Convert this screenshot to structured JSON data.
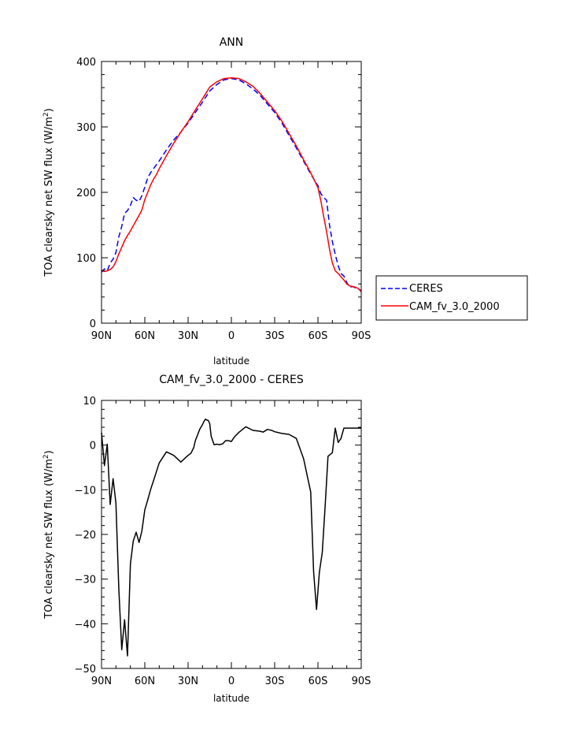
{
  "chart_data": [
    {
      "type": "line",
      "title": "ANN",
      "xlabel": "latitude",
      "ylabel": "TOA clearsky net SW flux (W/m2)",
      "xlim": [
        90,
        -90
      ],
      "ylim": [
        0,
        400
      ],
      "xticks": [
        90,
        60,
        30,
        0,
        -30,
        -60,
        -90
      ],
      "xtick_labels": [
        "90N",
        "60N",
        "30N",
        "0",
        "30S",
        "60S",
        "90S"
      ],
      "yticks": [
        0,
        100,
        200,
        300,
        400
      ],
      "ytick_labels": [
        "0",
        "100",
        "200",
        "300",
        "400"
      ],
      "grid": false,
      "legend_position": "right",
      "series": [
        {
          "name": "CERES",
          "color": "#0000ff",
          "dash": "dashed",
          "x": [
            90,
            88,
            86,
            84,
            82,
            80,
            78,
            76,
            74,
            72,
            70,
            68,
            66,
            64,
            62,
            60,
            58,
            56,
            54,
            52,
            50,
            45,
            40,
            35,
            30,
            25,
            20,
            15,
            10,
            5,
            0,
            -5,
            -10,
            -15,
            -20,
            -25,
            -30,
            -35,
            -40,
            -45,
            -50,
            -55,
            -60,
            -62,
            -64,
            -66,
            -68,
            -70,
            -72,
            -74,
            -76,
            -78,
            -80,
            -82,
            -84,
            -86,
            -88,
            -90
          ],
          "y": [
            78,
            83,
            80,
            92,
            98,
            108,
            132,
            148,
            168,
            172,
            180,
            192,
            188,
            186,
            195,
            208,
            222,
            230,
            236,
            242,
            248,
            265,
            280,
            292,
            306,
            322,
            338,
            355,
            365,
            372,
            374,
            372,
            366,
            358,
            348,
            335,
            322,
            306,
            287,
            268,
            248,
            228,
            210,
            198,
            192,
            188,
            150,
            125,
            105,
            88,
            76,
            72,
            62,
            55,
            56,
            54,
            52,
            50
          ]
        },
        {
          "name": "CAM_fv_3.0_2000",
          "color": "#ff0000",
          "dash": "solid",
          "x": [
            90,
            88,
            86,
            84,
            82,
            80,
            78,
            76,
            74,
            72,
            70,
            68,
            66,
            64,
            62,
            60,
            58,
            56,
            54,
            52,
            50,
            45,
            40,
            35,
            30,
            25,
            20,
            15,
            10,
            5,
            0,
            -5,
            -10,
            -15,
            -20,
            -25,
            -30,
            -35,
            -40,
            -45,
            -50,
            -55,
            -60,
            -62,
            -64,
            -66,
            -68,
            -70,
            -72,
            -74,
            -76,
            -78,
            -80,
            -82,
            -84,
            -86,
            -88,
            -90
          ],
          "y": [
            81,
            79,
            80,
            82,
            86,
            94,
            106,
            116,
            126,
            134,
            141,
            149,
            157,
            165,
            173,
            189,
            200,
            211,
            220,
            227,
            236,
            256,
            275,
            292,
            308,
            326,
            343,
            361,
            369,
            374,
            375,
            374,
            369,
            362,
            351,
            338,
            325,
            309,
            290,
            271,
            250,
            230,
            207,
            187,
            163,
            140,
            113,
            92,
            80,
            76,
            71,
            66,
            60,
            57,
            56,
            55,
            53,
            48
          ]
        }
      ]
    },
    {
      "type": "line",
      "title": "CAM_fv_3.0_2000 - CERES",
      "xlabel": "latitude",
      "ylabel": "TOA clearsky net SW flux (W/m2)",
      "xlim": [
        90,
        -90
      ],
      "ylim": [
        -50,
        10
      ],
      "xticks": [
        90,
        60,
        30,
        0,
        -30,
        -60,
        -90
      ],
      "xtick_labels": [
        "90N",
        "60N",
        "30N",
        "0",
        "30S",
        "60S",
        "90S"
      ],
      "yticks": [
        -50,
        -40,
        -30,
        -20,
        -10,
        0,
        10
      ],
      "ytick_labels": [
        "−50",
        "−40",
        "−30",
        "−20",
        "−10",
        "0",
        "10"
      ],
      "grid": false,
      "series": [
        {
          "color": "#000000",
          "dash": "solid",
          "x": [
            90,
            88,
            86,
            84,
            82,
            80,
            78,
            76,
            74,
            72,
            70,
            68,
            66,
            64,
            62,
            60,
            58,
            56,
            54,
            50,
            45,
            40,
            35,
            32,
            30,
            28,
            26,
            25,
            24,
            22,
            20,
            19,
            18,
            17,
            16,
            15,
            14,
            12,
            10,
            8,
            6,
            4,
            2,
            0,
            -2,
            -5,
            -10,
            -15,
            -20,
            -22,
            -25,
            -28,
            -30,
            -35,
            -40,
            -45,
            -50,
            -55,
            -57,
            -59,
            -61,
            -63,
            -65,
            -67,
            -70,
            -72,
            -74,
            -76,
            -78,
            -80,
            -82,
            -84,
            -86,
            -88,
            -90
          ],
          "y": [
            2.8,
            -4.6,
            0.2,
            -13.3,
            -7.5,
            -13.0,
            -32.3,
            -45.8,
            -39.1,
            -47.2,
            -26.6,
            -21.5,
            -19.5,
            -21.8,
            -19.2,
            -14.5,
            -12.3,
            -10.0,
            -8.0,
            -4.0,
            -1.5,
            -2.3,
            -3.8,
            -2.9,
            -2.3,
            -1.8,
            -0.5,
            1.0,
            1.8,
            3.5,
            4.6,
            5.3,
            5.8,
            5.6,
            5.5,
            4.8,
            2.0,
            0.1,
            0.2,
            0.1,
            0.3,
            1.0,
            1.0,
            0.8,
            1.8,
            2.8,
            4.1,
            3.3,
            3.1,
            2.9,
            3.5,
            3.3,
            3.0,
            2.6,
            2.4,
            1.5,
            -3.0,
            -10.5,
            -28.4,
            -36.8,
            -28.5,
            -24.0,
            -13.5,
            -2.5,
            -1.7,
            3.8,
            0.6,
            1.5,
            3.8,
            3.8,
            3.8,
            3.8,
            3.8,
            3.8,
            3.8
          ]
        }
      ]
    }
  ]
}
